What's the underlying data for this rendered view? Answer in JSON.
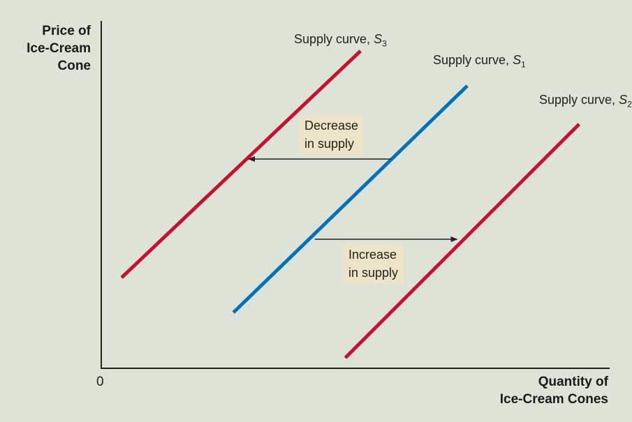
{
  "chart_data": {
    "type": "line",
    "title": "",
    "ylabel_lines": [
      "Price of",
      "Ice-Cream",
      "Cone"
    ],
    "xlabel_lines": [
      "Quantity of",
      "Ice-Cream Cones"
    ],
    "origin_label": "0",
    "xlim": [
      0,
      10
    ],
    "ylim": [
      0,
      10
    ],
    "grid": false,
    "series": [
      {
        "key": "s3",
        "label_prefix": "Supply curve, ",
        "symbol": "S",
        "subscript": "3",
        "color": "#c8102e",
        "x": [
          0.4,
          5.1
        ],
        "y": [
          2.6,
          9.1
        ]
      },
      {
        "key": "s1",
        "label_prefix": "Supply curve, ",
        "symbol": "S",
        "subscript": "1",
        "color": "#0072bc",
        "x": [
          2.6,
          7.2
        ],
        "y": [
          1.6,
          8.1
        ]
      },
      {
        "key": "s2",
        "label_prefix": "Supply curve, ",
        "symbol": "S",
        "subscript": "2",
        "color": "#c8102e",
        "x": [
          4.8,
          9.4
        ],
        "y": [
          0.3,
          7.0
        ]
      }
    ],
    "annotations": [
      {
        "key": "decrease",
        "lines": [
          "Decrease",
          "in supply"
        ],
        "arrow_from": [
          5.7,
          6.0
        ],
        "arrow_to": [
          2.9,
          6.0
        ]
      },
      {
        "key": "increase",
        "lines": [
          "Increase",
          "in supply"
        ],
        "arrow_from": [
          4.2,
          3.7
        ],
        "arrow_to": [
          7.0,
          3.7
        ]
      }
    ]
  }
}
